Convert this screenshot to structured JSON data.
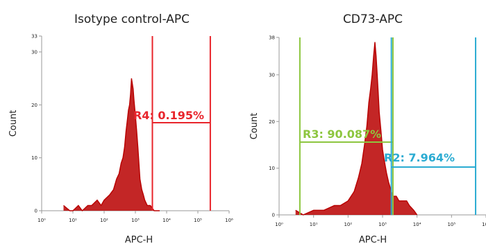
{
  "chart_data": [
    {
      "type": "area",
      "title": "Isotype control-APC",
      "xlabel": "APC-H",
      "ylabel": "Count",
      "x_scale": "log",
      "xlim": [
        1,
        1000000
      ],
      "ylim": [
        0,
        33
      ],
      "x_ticks": [
        "10⁰",
        "10¹",
        "10²",
        "10³",
        "10⁴",
        "10⁵",
        "10⁶"
      ],
      "y_ticks": [
        "0",
        "10",
        "20",
        "30",
        "33"
      ],
      "colors": {
        "histogram": "#b80000",
        "axes": "#9a9a9a"
      },
      "histogram": {
        "name": "",
        "x": [
          5,
          8,
          10,
          15,
          20,
          30,
          40,
          60,
          80,
          100,
          150,
          200,
          250,
          300,
          350,
          400,
          450,
          500,
          550,
          600,
          650,
          700,
          750,
          800,
          850,
          900,
          1000,
          1100,
          1200,
          1300,
          1400,
          1600,
          1800,
          2000,
          2400,
          3000,
          4000,
          6000
        ],
        "counts": [
          1,
          0,
          0,
          1,
          0,
          1,
          1,
          2,
          1,
          2,
          3,
          4,
          6,
          7,
          9,
          10,
          12,
          15,
          17,
          19,
          20,
          22,
          25,
          24,
          23,
          21,
          18,
          15,
          12,
          9,
          6,
          4,
          3,
          2,
          1,
          1,
          0,
          0
        ]
      },
      "gates": [
        {
          "label": "R4: 0.195%",
          "x_range": [
            3500,
            250000
          ],
          "color": "#e8242b"
        }
      ]
    },
    {
      "type": "area",
      "title": "CD73-APC",
      "xlabel": "APC-H",
      "ylabel": "Count",
      "x_scale": "log",
      "xlim": [
        1,
        1000000
      ],
      "ylim": [
        0,
        38
      ],
      "x_ticks": [
        "10⁰",
        "10¹",
        "10²",
        "10³",
        "10⁴",
        "10⁵",
        "10⁶"
      ],
      "y_ticks": [
        "0",
        "10",
        "20",
        "30",
        "38"
      ],
      "colors": {
        "histogram": "#b80000",
        "axes": "#9a9a9a"
      },
      "histogram": {
        "name": "",
        "x": [
          3,
          5,
          10,
          20,
          40,
          60,
          100,
          150,
          200,
          250,
          300,
          350,
          400,
          450,
          500,
          550,
          600,
          650,
          700,
          750,
          800,
          900,
          1000,
          1100,
          1300,
          1500,
          1800,
          2000,
          2500,
          3000,
          4000,
          5000,
          6000,
          8000,
          10000
        ],
        "counts": [
          1,
          0,
          1,
          1,
          2,
          2,
          3,
          5,
          8,
          11,
          15,
          19,
          24,
          27,
          30,
          34,
          37,
          34,
          30,
          26,
          22,
          18,
          14,
          12,
          9,
          7,
          5,
          4,
          4,
          3,
          3,
          3,
          2,
          1,
          0
        ]
      },
      "gates": [
        {
          "label": "R3: 90.087%",
          "x_range": [
            4,
            2000
          ],
          "color": "#8dc63f"
        },
        {
          "label": "R2: 7.964%",
          "x_range": [
            1800,
            500000
          ],
          "color": "#2aabd2"
        }
      ]
    }
  ]
}
